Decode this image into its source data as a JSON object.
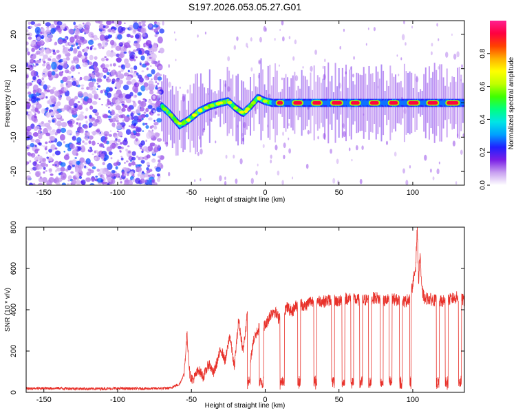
{
  "title": "S197.2026.053.05.27.G01",
  "chart_data": [
    {
      "type": "heatmap",
      "name": "spectrogram",
      "xlabel": "Height of straight line (km)",
      "ylabel": "Frequency (Hz)",
      "xlim": [
        -162,
        135
      ],
      "ylim": [
        -24,
        24
      ],
      "xticks": [
        -150,
        -100,
        -50,
        0,
        50,
        100
      ],
      "yticks": [
        -20,
        -10,
        0,
        10,
        20
      ],
      "colorbar": {
        "label": "Normalized spectral amplitude",
        "range": [
          0.0,
          1.0
        ],
        "ticks": [
          "0.0",
          "0.2",
          "0.4",
          "0.6",
          "0.8"
        ],
        "tick_values": [
          0.0,
          0.2,
          0.4,
          0.6,
          0.8
        ],
        "colors": [
          "#ffffff",
          "#c8a0f0",
          "#7a1fe6",
          "#2020ff",
          "#00a0ff",
          "#00e5e5",
          "#00ff80",
          "#40ff00",
          "#c0ff00",
          "#ffff00",
          "#ffb000",
          "#ff4000",
          "#ff0040",
          "#ff2090"
        ]
      },
      "signal_track": {
        "description_points_km_hz": [
          [
            -70,
            -1
          ],
          [
            -65,
            -3
          ],
          [
            -58,
            -6.5
          ],
          [
            -52,
            -5
          ],
          [
            -45,
            -2.5
          ],
          [
            -38,
            -1
          ],
          [
            -30,
            0
          ],
          [
            -25,
            0.5
          ],
          [
            -20,
            -1.5
          ],
          [
            -15,
            -3
          ],
          [
            -10,
            -1
          ],
          [
            -5,
            1.5
          ],
          [
            0,
            0.5
          ],
          [
            5,
            0
          ],
          [
            135,
            0
          ]
        ],
        "peak_segments_km": [
          [
            8,
            12
          ],
          [
            19,
            25
          ],
          [
            32,
            38
          ],
          [
            45,
            52
          ],
          [
            58,
            64
          ],
          [
            71,
            77
          ],
          [
            84,
            90
          ],
          [
            97,
            104
          ],
          [
            110,
            117
          ],
          [
            123,
            131
          ]
        ]
      }
    },
    {
      "type": "line",
      "name": "snr",
      "xlabel": "Height of straight line (km)",
      "ylabel": "SNR (10 * v/v)",
      "xlim": [
        -162,
        135
      ],
      "ylim": [
        0,
        800
      ],
      "xticks": [
        -150,
        -100,
        -50,
        0,
        50,
        100
      ],
      "yticks": [
        0,
        200,
        400,
        600,
        800
      ],
      "color": "#e8312a",
      "series": [
        {
          "name": "SNR",
          "x": [
            -162,
            -140,
            -120,
            -100,
            -80,
            -65,
            -58,
            -55,
            -53,
            -51,
            -49,
            -45,
            -42,
            -38,
            -35,
            -30,
            -27,
            -24,
            -21,
            -18,
            -15,
            -12,
            -11,
            -10,
            -8,
            -5,
            -2,
            0,
            3,
            6,
            9,
            12,
            15,
            18,
            21,
            24,
            27,
            30,
            35,
            40,
            45,
            50,
            55,
            60,
            65,
            70,
            75,
            80,
            85,
            90,
            95,
            98,
            100,
            102,
            103,
            104,
            105,
            106,
            108,
            110,
            115,
            120,
            125,
            130,
            135
          ],
          "y": [
            18,
            20,
            17,
            19,
            18,
            20,
            40,
            90,
            280,
            80,
            60,
            110,
            75,
            140,
            90,
            210,
            150,
            280,
            120,
            350,
            200,
            380,
            430,
            150,
            250,
            300,
            340,
            320,
            370,
            400,
            360,
            400,
            410,
            390,
            420,
            430,
            415,
            440,
            445,
            440,
            450,
            440,
            455,
            450,
            445,
            450,
            460,
            440,
            455,
            445,
            440,
            460,
            520,
            610,
            800,
            540,
            680,
            500,
            450,
            455,
            445,
            440,
            450,
            460,
            445
          ]
        }
      ],
      "dropouts_km": [
        [
          -12,
          -10
        ],
        [
          -4,
          -1
        ],
        [
          10,
          13
        ],
        [
          22,
          24
        ],
        [
          33,
          35
        ],
        [
          45,
          47
        ],
        [
          52,
          54
        ],
        [
          58,
          60
        ],
        [
          64,
          66
        ],
        [
          70,
          72
        ],
        [
          78,
          80
        ],
        [
          84,
          86
        ],
        [
          91,
          93
        ],
        [
          98,
          99
        ],
        [
          116,
          118
        ],
        [
          122,
          124
        ],
        [
          131,
          133
        ]
      ]
    }
  ]
}
